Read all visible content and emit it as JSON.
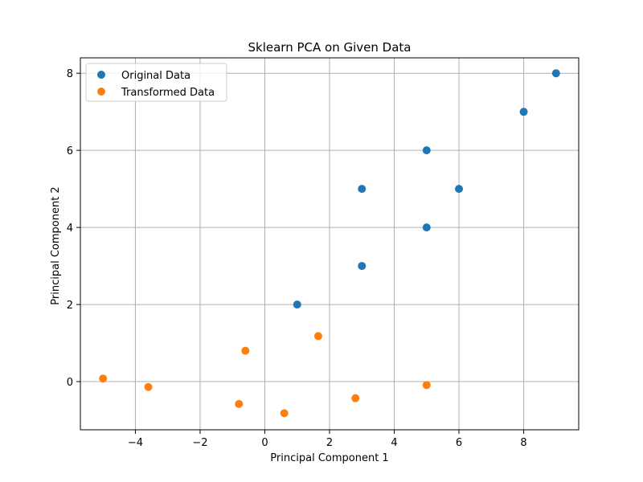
{
  "chart_data": {
    "type": "scatter",
    "title": "Sklearn PCA on Given Data",
    "xlabel": "Principal Component 1",
    "ylabel": "Principal Component 2",
    "xlim": [
      -5.7,
      9.7
    ],
    "ylim": [
      -1.25,
      8.4
    ],
    "xticks": [
      -4,
      -2,
      0,
      2,
      4,
      6,
      8
    ],
    "yticks": [
      0,
      2,
      4,
      6,
      8
    ],
    "grid": true,
    "legend_position": "top-left",
    "series": [
      {
        "name": "Original Data",
        "color": "#1f77b4",
        "points": [
          [
            1,
            2
          ],
          [
            3,
            3
          ],
          [
            3,
            5
          ],
          [
            5,
            4
          ],
          [
            5,
            6
          ],
          [
            6,
            5
          ],
          [
            8,
            7
          ],
          [
            9,
            8
          ]
        ]
      },
      {
        "name": "Transformed Data",
        "color": "#ff7f0e",
        "points": [
          [
            -5.0,
            0.08
          ],
          [
            -3.6,
            -0.14
          ],
          [
            -0.8,
            -0.58
          ],
          [
            -0.6,
            0.8
          ],
          [
            0.6,
            -0.82
          ],
          [
            1.65,
            1.18
          ],
          [
            2.8,
            -0.43
          ],
          [
            5.0,
            -0.09
          ]
        ]
      }
    ]
  }
}
